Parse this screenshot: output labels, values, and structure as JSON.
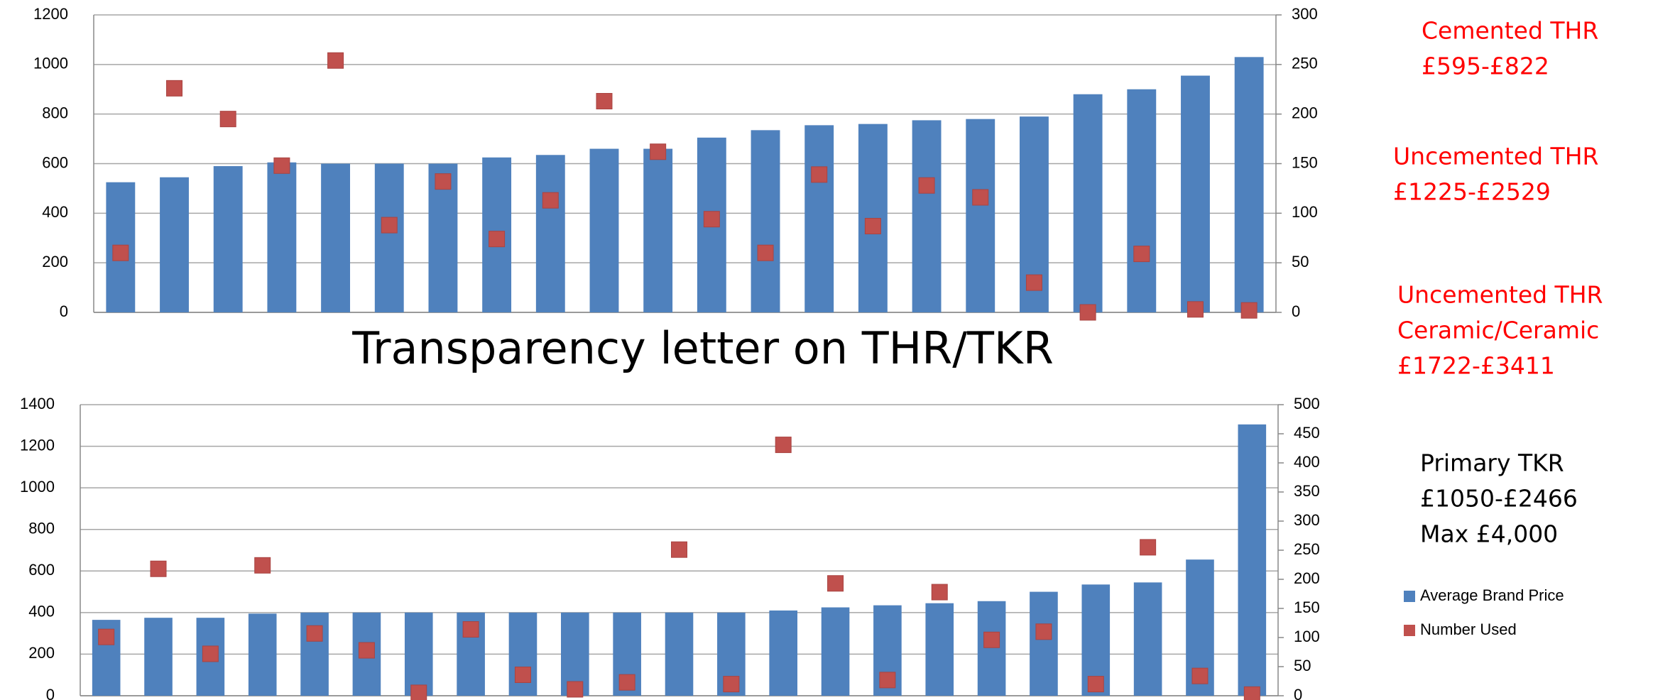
{
  "title": "Transparency letter on THR/TKR",
  "notes": [
    {
      "color": "#ff0000",
      "lines": [
        "Cemented THR",
        "£595-£822"
      ]
    },
    {
      "color": "#ff0000",
      "lines": [
        "Uncemented THR",
        "£1225-£2529"
      ]
    },
    {
      "color": "#ff0000",
      "lines": [
        "Uncemented THR",
        "Ceramic/Ceramic",
        "£1722-£3411"
      ]
    },
    {
      "color": "#000000",
      "lines": [
        "Primary TKR",
        "£1050-£2466",
        "Max £4,000"
      ]
    }
  ],
  "chart_data": [
    {
      "type": "bar",
      "ylim": [
        0,
        1200
      ],
      "yticks": [
        0,
        200,
        400,
        600,
        800,
        1000,
        1200
      ],
      "y2lim": [
        0,
        300
      ],
      "y2ticks": [
        0,
        50,
        100,
        150,
        200,
        250,
        300
      ],
      "grid": true,
      "series": [
        {
          "type": "bar",
          "color": "#4f81bd",
          "values": [
            525,
            545,
            590,
            605,
            600,
            600,
            600,
            625,
            635,
            660,
            660,
            705,
            735,
            755,
            760,
            775,
            780,
            790,
            880,
            900,
            955,
            1030
          ]
        },
        {
          "type": "scatter",
          "axis": "y2",
          "color": "#c0504d",
          "values": [
            60,
            226,
            195,
            148,
            254,
            88,
            132,
            74,
            113,
            213,
            162,
            94,
            60,
            139,
            87,
            128,
            116,
            30,
            0,
            59,
            3,
            2
          ]
        }
      ]
    },
    {
      "type": "bar",
      "ylim": [
        0,
        1400
      ],
      "yticks": [
        0,
        200,
        400,
        600,
        800,
        1000,
        1200,
        1400
      ],
      "y2lim": [
        0,
        500
      ],
      "y2ticks": [
        0,
        50,
        100,
        150,
        200,
        250,
        300,
        350,
        400,
        450,
        500
      ],
      "grid": true,
      "legend": "right",
      "series": [
        {
          "type": "bar",
          "name": "Average Brand Price",
          "color": "#4f81bd",
          "values": [
            365,
            375,
            375,
            395,
            400,
            400,
            400,
            400,
            400,
            400,
            400,
            400,
            400,
            410,
            425,
            435,
            445,
            455,
            500,
            535,
            545,
            655,
            1305
          ]
        },
        {
          "type": "scatter",
          "axis": "y2",
          "name": "Number Used",
          "color": "#c0504d",
          "values": [
            101,
            218,
            72,
            224,
            107,
            78,
            5,
            114,
            36,
            11,
            23,
            251,
            20,
            431,
            193,
            27,
            178,
            96,
            110,
            20,
            255,
            34,
            2
          ]
        }
      ]
    }
  ]
}
